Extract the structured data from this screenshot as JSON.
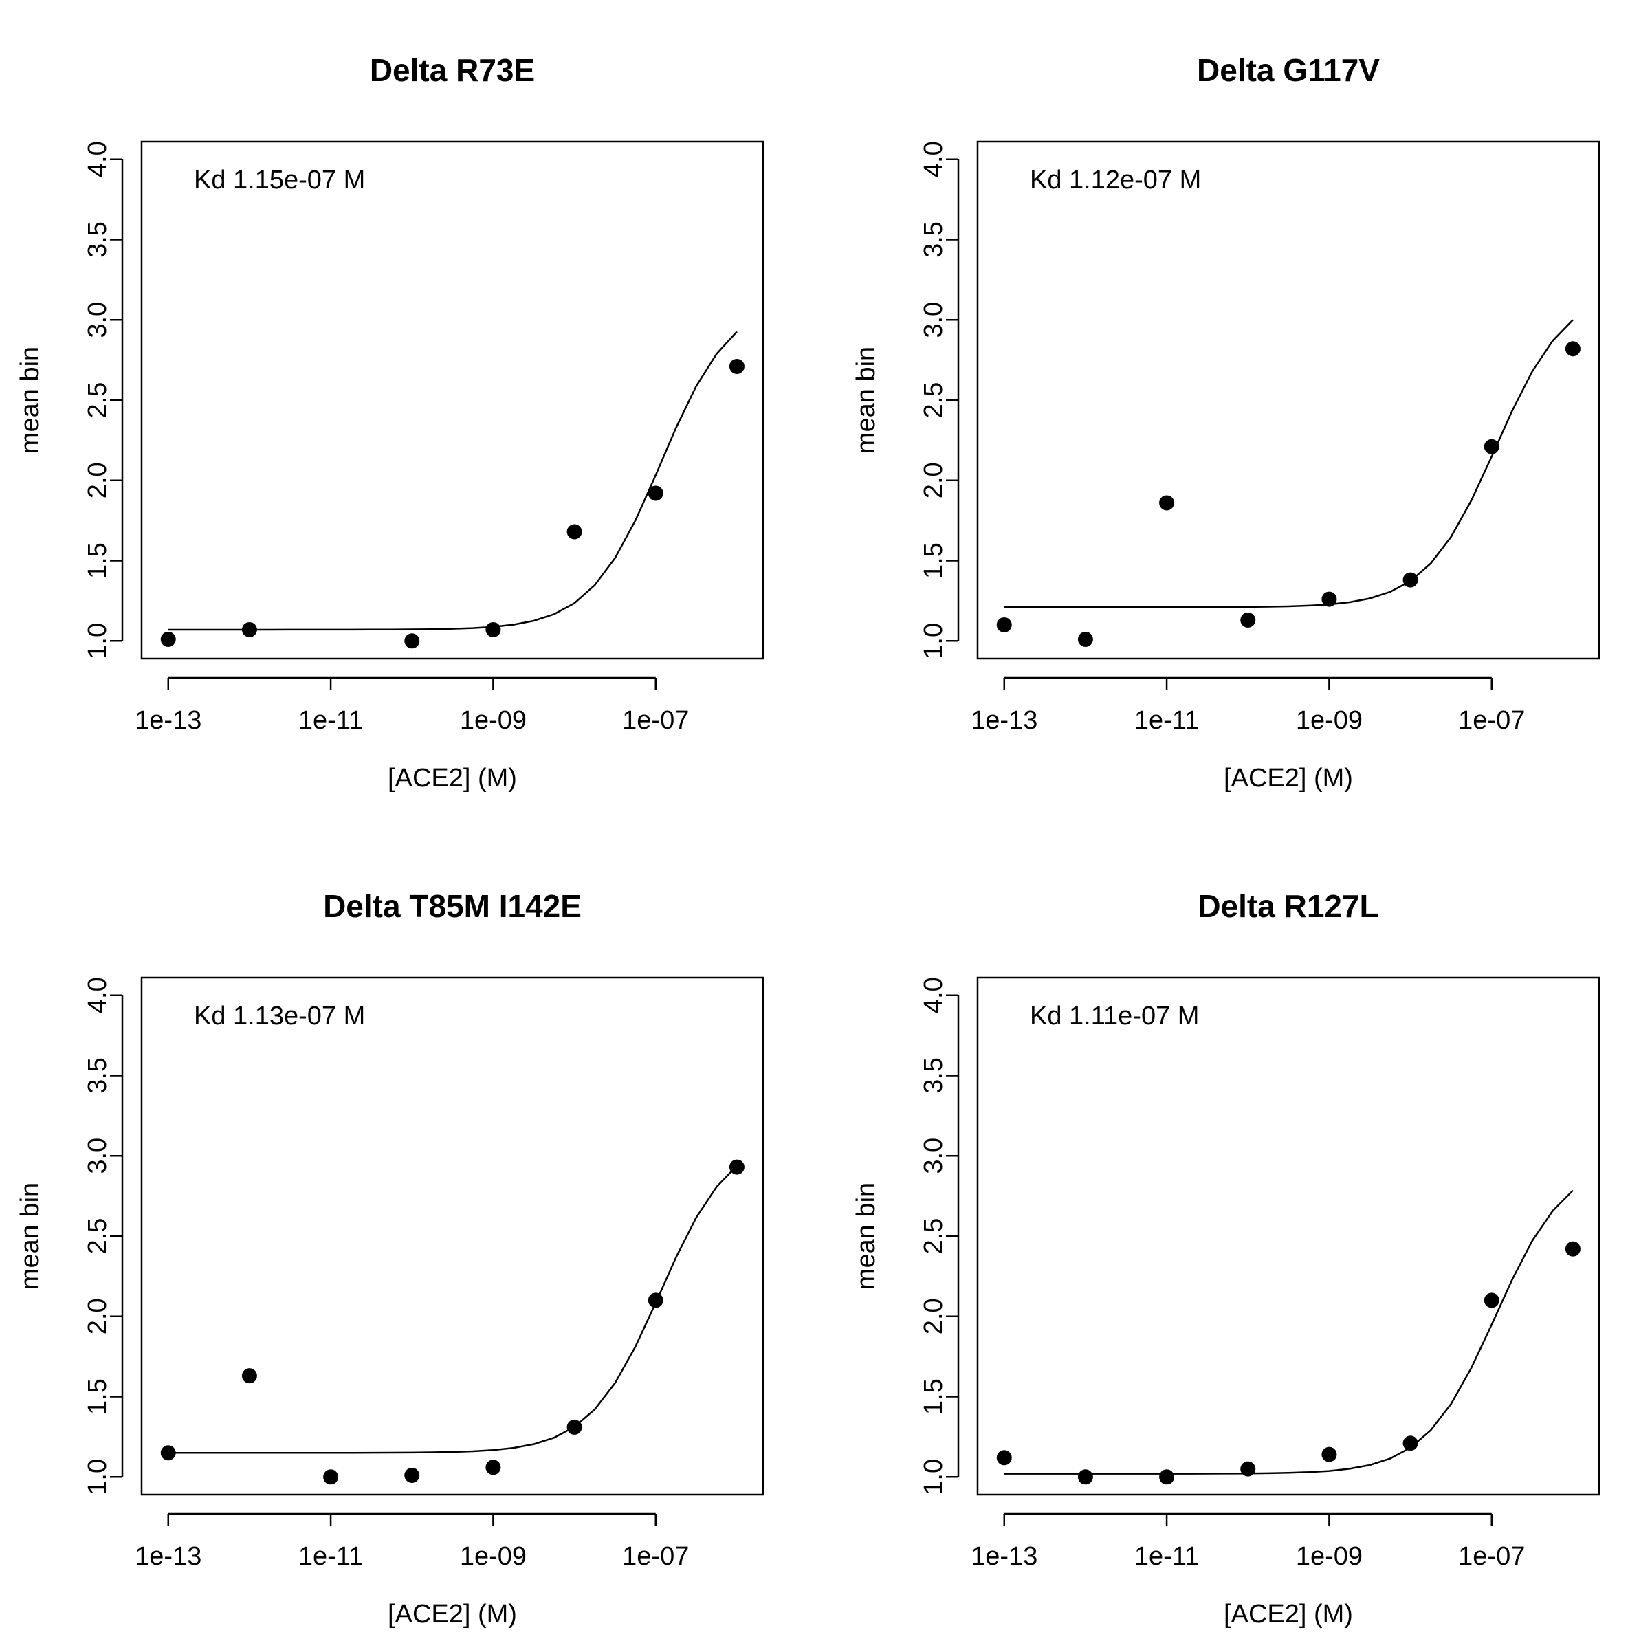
{
  "chart_data": [
    {
      "type": "scatter",
      "title": "Delta R73E",
      "xlabel": "[ACE2] (M)",
      "ylabel": "mean bin",
      "xscale": "log",
      "xlim": [
        4.7e-14,
        2.1e-06
      ],
      "ylim": [
        0.89,
        4.11
      ],
      "xticks": [
        1e-13,
        1e-11,
        1e-09,
        1e-07
      ],
      "xtick_labels": [
        "1e-13",
        "1e-11",
        "1e-09",
        "1e-07"
      ],
      "yticks": [
        1.0,
        1.5,
        2.0,
        2.5,
        3.0,
        3.5,
        4.0
      ],
      "ytick_labels": [
        "1.0",
        "1.5",
        "2.0",
        "2.5",
        "3.0",
        "3.5",
        "4.0"
      ],
      "annotation": "Kd 1.15e-07 M",
      "grid": false,
      "points": {
        "x": [
          1e-13,
          1e-12,
          1e-10,
          1e-09,
          1e-08,
          1e-07,
          1e-06
        ],
        "y": [
          1.01,
          1.07,
          1.0,
          1.07,
          1.68,
          1.92,
          2.71
        ]
      },
      "fit": {
        "kd": 1.15e-07,
        "lower": 1.07,
        "amplitude": 2.07,
        "x_range": [
          1e-13,
          1e-06
        ]
      }
    },
    {
      "type": "scatter",
      "title": "Delta G117V",
      "xlabel": "[ACE2] (M)",
      "ylabel": "mean bin",
      "xscale": "log",
      "xlim": [
        4.7e-14,
        2.1e-06
      ],
      "ylim": [
        0.89,
        4.11
      ],
      "xticks": [
        1e-13,
        1e-11,
        1e-09,
        1e-07
      ],
      "xtick_labels": [
        "1e-13",
        "1e-11",
        "1e-09",
        "1e-07"
      ],
      "yticks": [
        1.0,
        1.5,
        2.0,
        2.5,
        3.0,
        3.5,
        4.0
      ],
      "ytick_labels": [
        "1.0",
        "1.5",
        "2.0",
        "2.5",
        "3.0",
        "3.5",
        "4.0"
      ],
      "annotation": "Kd 1.12e-07 M",
      "grid": false,
      "points": {
        "x": [
          1e-13,
          1e-12,
          1e-11,
          1e-10,
          1e-09,
          1e-08,
          1e-07,
          1e-06
        ],
        "y": [
          1.1,
          1.01,
          1.86,
          1.13,
          1.26,
          1.38,
          2.21,
          2.82
        ]
      },
      "fit": {
        "kd": 1.12e-07,
        "lower": 1.21,
        "amplitude": 1.99,
        "x_range": [
          1e-13,
          1e-06
        ]
      }
    },
    {
      "type": "scatter",
      "title": "Delta T85M I142E",
      "xlabel": "[ACE2] (M)",
      "ylabel": "mean bin",
      "xscale": "log",
      "xlim": [
        4.7e-14,
        2.1e-06
      ],
      "ylim": [
        0.89,
        4.11
      ],
      "xticks": [
        1e-13,
        1e-11,
        1e-09,
        1e-07
      ],
      "xtick_labels": [
        "1e-13",
        "1e-11",
        "1e-09",
        "1e-07"
      ],
      "yticks": [
        1.0,
        1.5,
        2.0,
        2.5,
        3.0,
        3.5,
        4.0
      ],
      "ytick_labels": [
        "1.0",
        "1.5",
        "2.0",
        "2.5",
        "3.0",
        "3.5",
        "4.0"
      ],
      "annotation": "Kd 1.13e-07 M",
      "grid": false,
      "points": {
        "x": [
          1e-13,
          1e-12,
          1e-11,
          1e-10,
          1e-09,
          1e-08,
          1e-07,
          1e-06
        ],
        "y": [
          1.15,
          1.63,
          1.0,
          1.01,
          1.06,
          1.31,
          2.1,
          2.93
        ]
      },
      "fit": {
        "kd": 1.13e-07,
        "lower": 1.15,
        "amplitude": 1.99,
        "x_range": [
          1e-13,
          1e-06
        ]
      }
    },
    {
      "type": "scatter",
      "title": "Delta R127L",
      "xlabel": "[ACE2] (M)",
      "ylabel": "mean bin",
      "xscale": "log",
      "xlim": [
        4.7e-14,
        2.1e-06
      ],
      "ylim": [
        0.89,
        4.11
      ],
      "xticks": [
        1e-13,
        1e-11,
        1e-09,
        1e-07
      ],
      "xtick_labels": [
        "1e-13",
        "1e-11",
        "1e-09",
        "1e-07"
      ],
      "yticks": [
        1.0,
        1.5,
        2.0,
        2.5,
        3.0,
        3.5,
        4.0
      ],
      "ytick_labels": [
        "1.0",
        "1.5",
        "2.0",
        "2.5",
        "3.0",
        "3.5",
        "4.0"
      ],
      "annotation": "Kd 1.11e-07 M",
      "grid": false,
      "points": {
        "x": [
          1e-13,
          1e-12,
          1e-11,
          1e-10,
          1e-09,
          1e-08,
          1e-07,
          1e-06
        ],
        "y": [
          1.12,
          1.0,
          1.0,
          1.05,
          1.14,
          1.21,
          2.1,
          2.42
        ]
      },
      "fit": {
        "kd": 1.11e-07,
        "lower": 1.02,
        "amplitude": 1.96,
        "x_range": [
          1e-13,
          1e-06
        ]
      }
    }
  ]
}
